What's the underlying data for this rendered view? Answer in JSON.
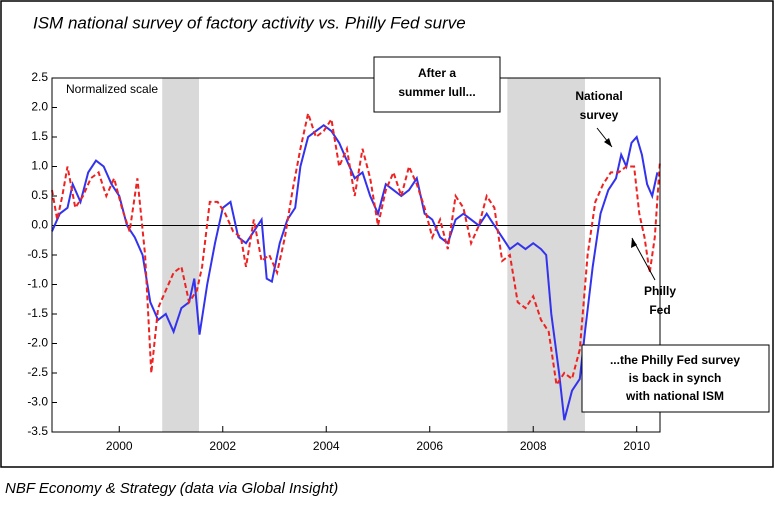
{
  "chart_data": {
    "type": "line",
    "title": "ISM national survey of factory activity vs. Philly Fed surve",
    "source": "NBF Economy & Strategy (data via Global Insight)",
    "xlim": [
      1998.7,
      2010.45
    ],
    "xticks": [
      2000,
      2002,
      2004,
      2006,
      2008,
      2010
    ],
    "ylim": [
      -3.5,
      2.5
    ],
    "yticks": [
      2.5,
      {
        "value": 2,
        "label": "2.0"
      },
      1.5,
      {
        "value": 1,
        "label": "1.0"
      },
      0.5,
      {
        "value": 0,
        "label": "0.0"
      },
      -0.5,
      {
        "value": -1,
        "label": "-1.0"
      },
      -1.5,
      {
        "value": -2,
        "label": "-2.0"
      },
      -2.5,
      {
        "value": -3,
        "label": "-3.0"
      },
      -3.5
    ],
    "shaded": [
      [
        2000.83,
        2001.54
      ],
      [
        2007.5,
        2009.0
      ]
    ],
    "annotations": {
      "scale": "Normalized scale",
      "lull": [
        "After a",
        "summer lull..."
      ],
      "national": [
        "National",
        "survey"
      ],
      "philly": [
        "Philly",
        "Fed"
      ],
      "synch": [
        "...the Philly Fed survey",
        "is back in synch",
        "with national ISM"
      ]
    },
    "series": [
      {
        "name": "National survey",
        "color": "#3333ee",
        "dashed": false,
        "x": [
          1998.7,
          1998.85,
          1999.0,
          1999.1,
          1999.25,
          1999.4,
          1999.55,
          1999.7,
          1999.85,
          2000.0,
          2000.15,
          2000.3,
          2000.45,
          2000.6,
          2000.75,
          2000.9,
          2001.05,
          2001.2,
          2001.35,
          2001.45,
          2001.55,
          2001.7,
          2001.85,
          2002.0,
          2002.15,
          2002.3,
          2002.45,
          2002.6,
          2002.75,
          2002.85,
          2002.95,
          2003.1,
          2003.25,
          2003.4,
          2003.5,
          2003.65,
          2003.8,
          2003.95,
          2004.1,
          2004.25,
          2004.4,
          2004.55,
          2004.7,
          2004.85,
          2005.0,
          2005.15,
          2005.3,
          2005.45,
          2005.6,
          2005.75,
          2005.9,
          2006.05,
          2006.2,
          2006.35,
          2006.5,
          2006.65,
          2006.8,
          2006.95,
          2007.1,
          2007.25,
          2007.4,
          2007.55,
          2007.7,
          2007.85,
          2008.0,
          2008.15,
          2008.25,
          2008.35,
          2008.5,
          2008.6,
          2008.75,
          2008.9,
          2009.0,
          2009.15,
          2009.3,
          2009.45,
          2009.6,
          2009.7,
          2009.8,
          2009.9,
          2010.0,
          2010.1,
          2010.2,
          2010.3,
          2010.4
        ],
        "values": [
          -0.1,
          0.2,
          0.3,
          0.7,
          0.4,
          0.9,
          1.1,
          1.0,
          0.7,
          0.5,
          0.0,
          -0.2,
          -0.5,
          -1.3,
          -1.6,
          -1.5,
          -1.8,
          -1.4,
          -1.3,
          -0.9,
          -1.85,
          -1.0,
          -0.3,
          0.3,
          0.4,
          -0.2,
          -0.3,
          -0.1,
          0.1,
          -0.9,
          -0.95,
          -0.3,
          0.1,
          0.3,
          1.0,
          1.5,
          1.6,
          1.7,
          1.6,
          1.4,
          1.1,
          0.8,
          0.9,
          0.5,
          0.2,
          0.7,
          0.6,
          0.5,
          0.6,
          0.8,
          0.2,
          0.1,
          -0.2,
          -0.3,
          0.1,
          0.2,
          0.1,
          0.0,
          0.2,
          0.0,
          -0.2,
          -0.4,
          -0.3,
          -0.4,
          -0.3,
          -0.4,
          -0.5,
          -1.5,
          -2.5,
          -3.3,
          -2.8,
          -2.6,
          -1.8,
          -0.7,
          0.2,
          0.6,
          0.8,
          1.2,
          1.0,
          1.4,
          1.5,
          1.2,
          0.7,
          0.5,
          0.9
        ]
      },
      {
        "name": "Philly Fed",
        "color": "#ee2222",
        "dashed": true,
        "x": [
          1998.7,
          1998.8,
          1998.9,
          1999.0,
          1999.15,
          1999.3,
          1999.45,
          1999.6,
          1999.75,
          1999.9,
          2000.05,
          2000.2,
          2000.35,
          2000.5,
          2000.62,
          2000.75,
          2000.9,
          2001.05,
          2001.2,
          2001.35,
          2001.5,
          2001.6,
          2001.75,
          2001.9,
          2002.05,
          2002.2,
          2002.35,
          2002.45,
          2002.6,
          2002.75,
          2002.9,
          2003.05,
          2003.2,
          2003.35,
          2003.5,
          2003.65,
          2003.8,
          2003.95,
          2004.1,
          2004.25,
          2004.4,
          2004.55,
          2004.7,
          2004.85,
          2005.0,
          2005.15,
          2005.3,
          2005.45,
          2005.6,
          2005.75,
          2005.9,
          2006.05,
          2006.2,
          2006.35,
          2006.5,
          2006.65,
          2006.8,
          2006.95,
          2007.1,
          2007.25,
          2007.4,
          2007.55,
          2007.7,
          2007.85,
          2008.0,
          2008.15,
          2008.3,
          2008.45,
          2008.6,
          2008.75,
          2008.9,
          2009.05,
          2009.2,
          2009.35,
          2009.5,
          2009.65,
          2009.8,
          2009.95,
          2010.05,
          2010.15,
          2010.25,
          2010.35,
          2010.45
        ],
        "values": [
          0.6,
          0.1,
          0.5,
          1.0,
          0.3,
          0.5,
          0.8,
          0.9,
          0.5,
          0.8,
          0.3,
          -0.1,
          0.8,
          -0.5,
          -2.5,
          -1.4,
          -1.1,
          -0.8,
          -0.7,
          -1.3,
          -1.1,
          -0.7,
          0.4,
          0.4,
          0.2,
          -0.1,
          -0.2,
          -0.7,
          0.1,
          -0.6,
          -0.5,
          -0.8,
          -0.2,
          0.6,
          1.3,
          1.9,
          1.5,
          1.6,
          1.8,
          1.0,
          1.3,
          0.5,
          1.3,
          0.8,
          0.0,
          0.6,
          0.9,
          0.5,
          1.0,
          0.7,
          0.3,
          -0.2,
          0.1,
          -0.4,
          0.5,
          0.3,
          -0.3,
          0.0,
          0.5,
          0.3,
          -0.6,
          -0.5,
          -1.3,
          -1.4,
          -1.2,
          -1.6,
          -1.8,
          -2.7,
          -2.5,
          -2.6,
          -2.1,
          -0.5,
          0.4,
          0.7,
          0.9,
          0.9,
          1.0,
          1.0,
          0.2,
          -0.2,
          -0.8,
          -0.2,
          1.1
        ]
      }
    ]
  }
}
